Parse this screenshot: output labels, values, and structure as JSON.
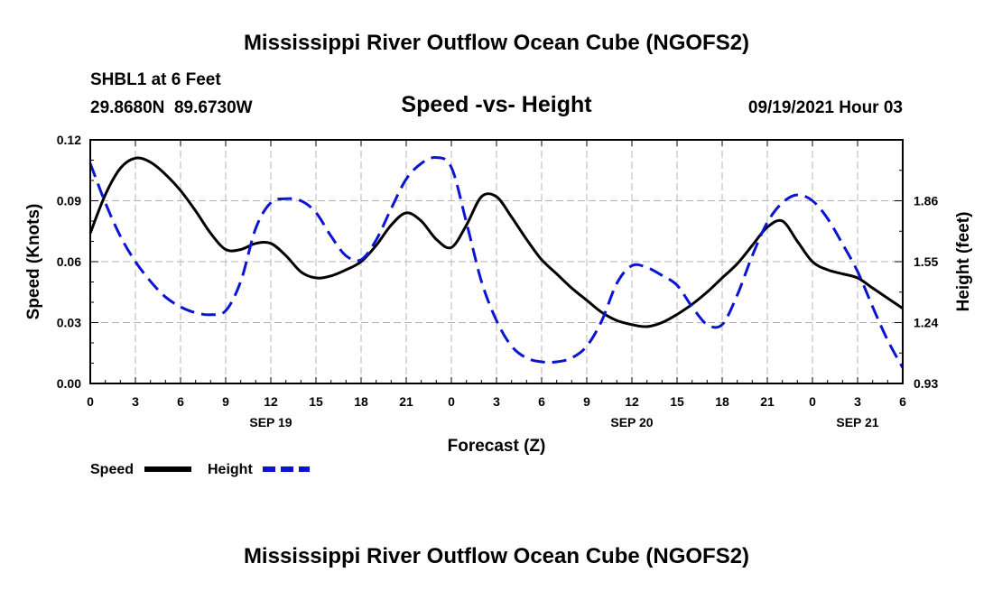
{
  "page_title": "Mississippi River Outflow Ocean Cube (NGOFS2)",
  "footer_title": "Mississippi River Outflow Ocean Cube (NGOFS2)",
  "station": "SHBL1 at 6 Feet",
  "coords": "29.8680N  89.6730W",
  "datetime": "09/19/2021 Hour 03",
  "colors": {
    "speed": "#000000",
    "height": "#0a14d2",
    "grid": "#b4b4b4"
  },
  "chart_data": {
    "type": "line",
    "title": "Speed -vs- Height",
    "xlabel": "Forecast (Z)",
    "ylabel": "Speed (Knots)",
    "y2label": "Height (feet)",
    "xlim": [
      0,
      54
    ],
    "ylim": [
      0,
      0.12
    ],
    "y2lim": [
      0.93,
      2.17
    ],
    "x_tick_values": [
      0,
      3,
      6,
      9,
      12,
      15,
      18,
      21,
      24,
      27,
      30,
      33,
      36,
      39,
      42,
      45,
      48,
      51,
      54
    ],
    "x_tick_labels": [
      "0",
      "3",
      "6",
      "9",
      "12",
      "15",
      "18",
      "21",
      "0",
      "3",
      "6",
      "9",
      "12",
      "15",
      "18",
      "21",
      "0",
      "3",
      "6"
    ],
    "date_labels": [
      {
        "x": 12,
        "label": "SEP 19"
      },
      {
        "x": 36,
        "label": "SEP 20"
      },
      {
        "x": 51,
        "label": "SEP 21"
      }
    ],
    "y_ticks": [
      0,
      0.03,
      0.06,
      0.09,
      0.12
    ],
    "y_tick_labels": [
      "0.00",
      "0.03",
      "0.06",
      "0.09",
      "0.12"
    ],
    "y2_ticks": [
      0.93,
      1.24,
      1.55,
      1.86
    ],
    "y2_tick_labels": [
      "0.93",
      "1.24",
      "1.55",
      "1.86"
    ],
    "series": [
      {
        "name": "Speed",
        "axis": "left",
        "style": "solid",
        "x": [
          0,
          1,
          2,
          3,
          4,
          5,
          6,
          7,
          8,
          9,
          10,
          11,
          12,
          13,
          14,
          15,
          16,
          17,
          18,
          19,
          20,
          21,
          22,
          23,
          24,
          25,
          26,
          27,
          28,
          29,
          30,
          31,
          32,
          33,
          34,
          35,
          36,
          37,
          38,
          39,
          40,
          41,
          42,
          43,
          44,
          45,
          46,
          47,
          48,
          49,
          50,
          51,
          52,
          53,
          54
        ],
        "values": [
          0.074,
          0.093,
          0.106,
          0.111,
          0.109,
          0.103,
          0.095,
          0.085,
          0.074,
          0.066,
          0.066,
          0.069,
          0.069,
          0.063,
          0.055,
          0.052,
          0.053,
          0.056,
          0.06,
          0.068,
          0.078,
          0.084,
          0.08,
          0.071,
          0.067,
          0.078,
          0.092,
          0.092,
          0.082,
          0.071,
          0.061,
          0.054,
          0.047,
          0.041,
          0.035,
          0.031,
          0.029,
          0.028,
          0.03,
          0.034,
          0.039,
          0.045,
          0.052,
          0.059,
          0.068,
          0.077,
          0.08,
          0.07,
          0.06,
          0.056,
          0.054,
          0.052,
          0.047,
          0.042,
          0.037
        ]
      },
      {
        "name": "Height",
        "axis": "right",
        "style": "dashed",
        "x": [
          0,
          1,
          2,
          3,
          4,
          5,
          6,
          7,
          8,
          9,
          10,
          11,
          12,
          13,
          14,
          15,
          16,
          17,
          18,
          19,
          20,
          21,
          22,
          23,
          24,
          25,
          26,
          27,
          28,
          29,
          30,
          31,
          32,
          33,
          34,
          35,
          36,
          37,
          38,
          39,
          40,
          41,
          42,
          43,
          44,
          45,
          46,
          47,
          48,
          49,
          50,
          51,
          52,
          53,
          54
        ],
        "values": [
          2.05,
          1.85,
          1.68,
          1.55,
          1.45,
          1.37,
          1.32,
          1.29,
          1.28,
          1.3,
          1.45,
          1.72,
          1.85,
          1.87,
          1.86,
          1.8,
          1.68,
          1.58,
          1.56,
          1.66,
          1.82,
          1.97,
          2.05,
          2.08,
          2.03,
          1.75,
          1.45,
          1.25,
          1.12,
          1.06,
          1.04,
          1.04,
          1.06,
          1.12,
          1.25,
          1.44,
          1.53,
          1.52,
          1.48,
          1.43,
          1.32,
          1.23,
          1.23,
          1.38,
          1.58,
          1.75,
          1.85,
          1.89,
          1.86,
          1.77,
          1.64,
          1.5,
          1.32,
          1.15,
          1.01
        ]
      }
    ],
    "legend": [
      {
        "label": "Speed",
        "style": "solid"
      },
      {
        "label": "Height",
        "style": "dashed"
      }
    ]
  }
}
